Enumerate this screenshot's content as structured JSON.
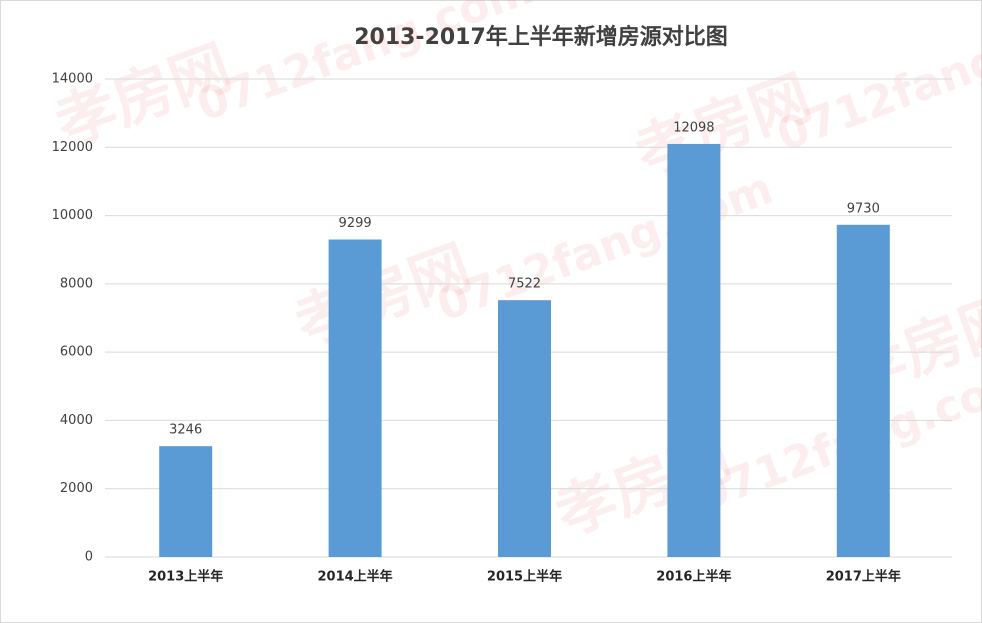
{
  "chart_data": {
    "type": "bar",
    "title": "2013-2017年上半年新增房源对比图",
    "categories": [
      "2013上半年",
      "2014上半年",
      "2015上半年",
      "2016上半年",
      "2017上半年"
    ],
    "values": [
      3246,
      9299,
      7522,
      12098,
      9730
    ],
    "color": "#5b9bd5",
    "ylim": [
      0,
      14000
    ],
    "yticks": [
      0,
      2000,
      4000,
      6000,
      8000,
      10000,
      12000,
      14000
    ],
    "grid": true,
    "watermark": [
      "孝房网",
      "0712fang.com"
    ]
  }
}
